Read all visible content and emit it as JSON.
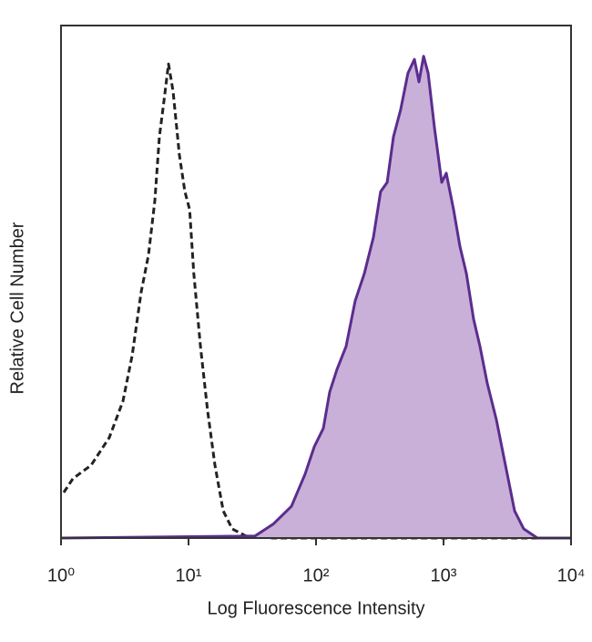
{
  "chart_data": {
    "type": "histogram-overlay",
    "xlabel": "Log Fluorescence Intensity",
    "ylabel": "Relative Cell Number",
    "xscale": "log",
    "xlim": [
      1,
      10000
    ],
    "xticks": [
      {
        "value": 1,
        "label": "10⁰"
      },
      {
        "value": 10,
        "label": "10¹"
      },
      {
        "value": 100,
        "label": "10²"
      },
      {
        "value": 1000,
        "label": "10³"
      },
      {
        "value": 10000,
        "label": "10⁴"
      }
    ],
    "ylim": [
      0,
      100
    ],
    "series": [
      {
        "color": "#222222",
        "style": "dashed",
        "filled": false,
        "x": [
          1.05,
          1.24,
          1.72,
          2.39,
          3.06,
          3.61,
          4.25,
          4.85,
          5.44,
          5.91,
          6.42,
          6.96,
          7.56,
          8.48,
          9.36,
          10.2,
          11.0,
          12.4,
          14.1,
          16.1,
          18.7,
          22.0,
          28.2,
          46.1,
          10000
        ],
        "values": [
          8.9,
          11.6,
          14.2,
          19.6,
          26.7,
          35.6,
          48.0,
          55.2,
          65.8,
          78.3,
          85.4,
          92.5,
          87.2,
          74.7,
          67.6,
          64.1,
          51.6,
          37.4,
          24.9,
          14.2,
          5.3,
          1.8,
          0.4,
          0,
          0
        ]
      },
      {
        "color": "#5b2d8e",
        "fill": "#c9b0d9",
        "style": "solid",
        "filled": true,
        "x": [
          1,
          33.2,
          46.1,
          64.1,
          82.1,
          96.8,
          114,
          128,
          146,
          172,
          203,
          239,
          282,
          321,
          361,
          405,
          461,
          526,
          591,
          641,
          697,
          757,
          849,
          968,
          1050,
          1199,
          1345,
          1510,
          1720,
          1931,
          2203,
          2596,
          3062,
          3606,
          4253,
          5444,
          10000
        ],
        "values": [
          0,
          0.4,
          2.7,
          6.2,
          12.5,
          17.8,
          21.4,
          28.5,
          32.9,
          37.4,
          46.3,
          51.6,
          58.7,
          67.6,
          69.4,
          78.3,
          83.6,
          90.7,
          93.4,
          89.0,
          94.0,
          90.7,
          80.1,
          69.4,
          71.2,
          64.1,
          56.9,
          51.6,
          42.7,
          37.4,
          30.2,
          23.1,
          14.2,
          5.3,
          1.8,
          0,
          0
        ]
      }
    ]
  }
}
